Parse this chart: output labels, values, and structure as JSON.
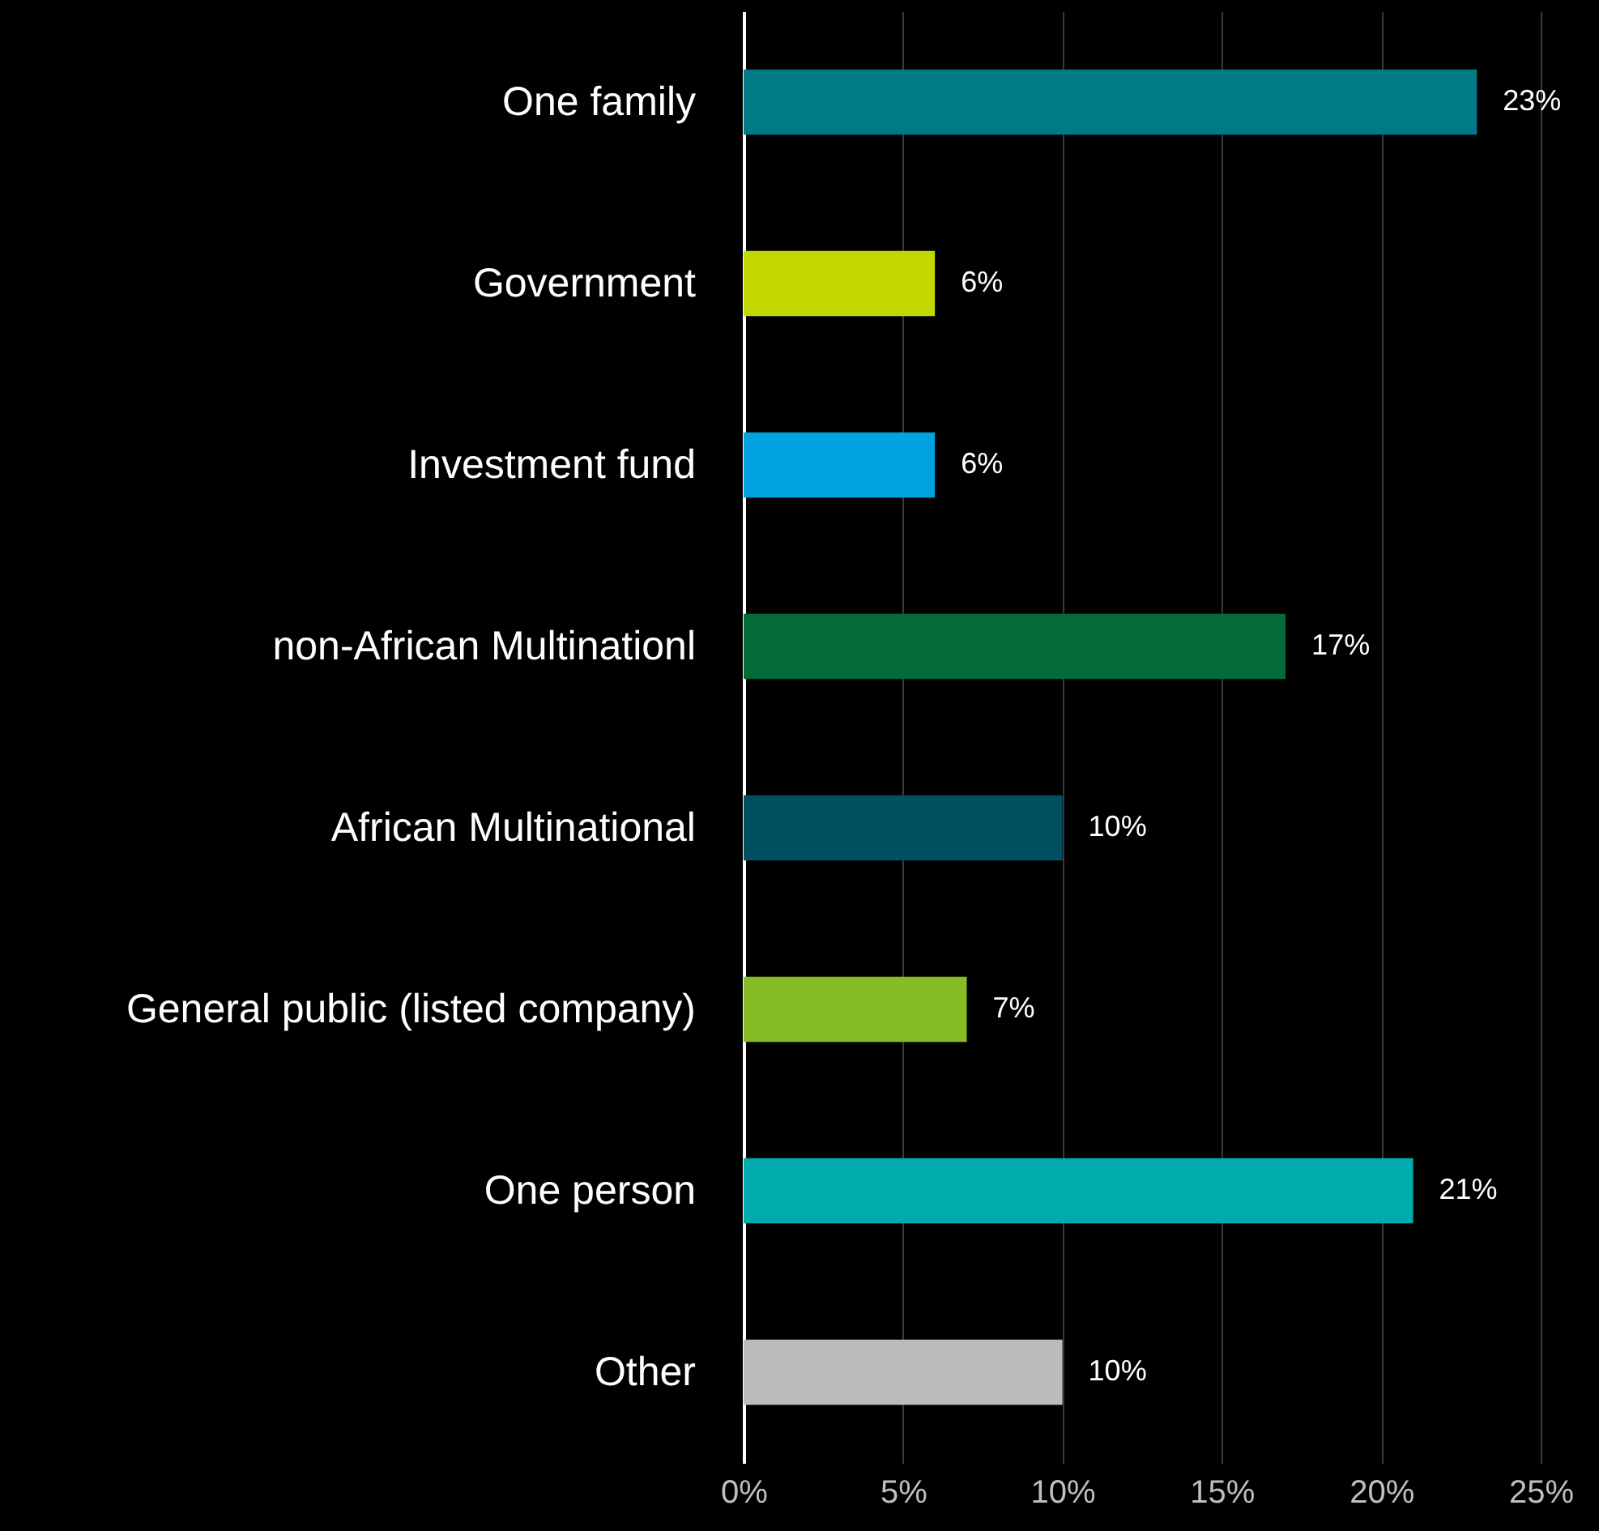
{
  "chart_data": {
    "type": "bar",
    "orientation": "horizontal",
    "categories": [
      "One family",
      "Government",
      "Investment fund",
      "non-African Multinationl",
      "African Multinational",
      "General public (listed company)",
      "One person",
      "Other"
    ],
    "values": [
      23,
      6,
      6,
      17,
      10,
      7,
      21,
      10
    ],
    "colors": [
      "#007a87",
      "#c4d600",
      "#00a3e0",
      "#046a38",
      "#005061",
      "#86bc25",
      "#00abab",
      "#bbbcbc"
    ],
    "value_labels": [
      "23%",
      "6%",
      "6%",
      "17%",
      "10%",
      "7%",
      "21%",
      "10%"
    ],
    "xlim": [
      0,
      25
    ],
    "xticks": [
      {
        "value": 0,
        "label": "0%"
      },
      {
        "value": 5,
        "label": "5%"
      },
      {
        "value": 10,
        "label": "10%"
      },
      {
        "value": 15,
        "label": "15%"
      },
      {
        "value": 20,
        "label": "20%"
      },
      {
        "value": 25,
        "label": "25%"
      }
    ],
    "grid": "x"
  }
}
